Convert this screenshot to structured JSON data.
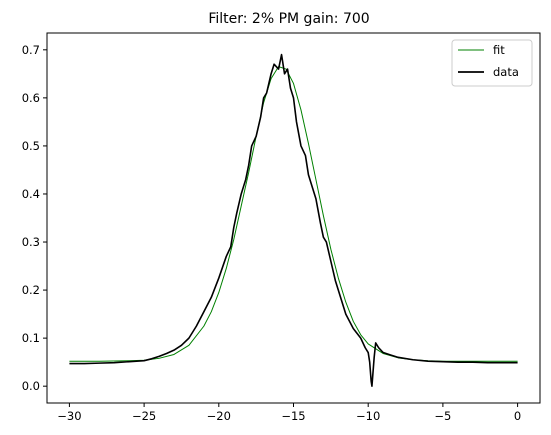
{
  "chart_data": {
    "type": "line",
    "title": "Filter: 2% PM gain: 700",
    "xlabel": "",
    "ylabel": "",
    "xlim": [
      -31.5,
      1.5
    ],
    "ylim": [
      -0.035,
      0.735
    ],
    "x_ticks": [
      -30,
      -25,
      -20,
      -15,
      -10,
      -5,
      0
    ],
    "x_tick_labels": [
      "−30",
      "−25",
      "−20",
      "−15",
      "−10",
      "−5",
      "0"
    ],
    "y_ticks": [
      0.0,
      0.1,
      0.2,
      0.3,
      0.4,
      0.5,
      0.6,
      0.7
    ],
    "y_tick_labels": [
      "0.0",
      "0.1",
      "0.2",
      "0.3",
      "0.4",
      "0.5",
      "0.6",
      "0.7"
    ],
    "grid": false,
    "legend_position": "top-right",
    "series": [
      {
        "name": "fit",
        "color": "#008000",
        "x": [
          -30,
          -28,
          -26,
          -25,
          -24,
          -23,
          -22,
          -21,
          -20.5,
          -20,
          -19.5,
          -19,
          -18.5,
          -18,
          -17.5,
          -17,
          -16.5,
          -16,
          -15.5,
          -15,
          -14.5,
          -14,
          -13.5,
          -13,
          -12.5,
          -12,
          -11.5,
          -11,
          -10.5,
          -10,
          -9,
          -8,
          -7,
          -6,
          -5,
          -4,
          -2,
          0
        ],
        "y": [
          0.052,
          0.052,
          0.053,
          0.054,
          0.058,
          0.066,
          0.085,
          0.125,
          0.155,
          0.195,
          0.245,
          0.305,
          0.375,
          0.445,
          0.52,
          0.59,
          0.64,
          0.665,
          0.66,
          0.63,
          0.575,
          0.505,
          0.43,
          0.355,
          0.285,
          0.225,
          0.175,
          0.135,
          0.107,
          0.088,
          0.068,
          0.059,
          0.055,
          0.053,
          0.052,
          0.052,
          0.052,
          0.052
        ]
      },
      {
        "name": "data",
        "color": "#000000",
        "x": [
          -30,
          -29,
          -28,
          -27,
          -26,
          -25,
          -24.5,
          -24,
          -23.5,
          -23,
          -22.5,
          -22,
          -21.5,
          -21,
          -20.5,
          -20,
          -19.5,
          -19.2,
          -19,
          -18.8,
          -18.5,
          -18.2,
          -18,
          -17.8,
          -17.5,
          -17.2,
          -17,
          -16.8,
          -16.5,
          -16.3,
          -16,
          -15.8,
          -15.6,
          -15.4,
          -15.2,
          -15,
          -14.8,
          -14.5,
          -14.2,
          -14,
          -13.8,
          -13.5,
          -13.2,
          -13,
          -12.8,
          -12.5,
          -12.2,
          -12,
          -11.5,
          -11,
          -10.5,
          -10.2,
          -10,
          -9.9,
          -9.8,
          -9.75,
          -9.7,
          -9.6,
          -9.5,
          -9.3,
          -9,
          -8.5,
          -8,
          -7,
          -6,
          -5,
          -4,
          -3,
          -2,
          -1,
          0
        ],
        "y": [
          0.047,
          0.047,
          0.048,
          0.049,
          0.051,
          0.053,
          0.057,
          0.062,
          0.068,
          0.075,
          0.085,
          0.1,
          0.125,
          0.155,
          0.185,
          0.225,
          0.27,
          0.29,
          0.33,
          0.36,
          0.4,
          0.43,
          0.46,
          0.5,
          0.52,
          0.56,
          0.6,
          0.61,
          0.65,
          0.67,
          0.66,
          0.69,
          0.65,
          0.66,
          0.62,
          0.6,
          0.55,
          0.5,
          0.48,
          0.44,
          0.42,
          0.39,
          0.34,
          0.31,
          0.3,
          0.26,
          0.22,
          0.2,
          0.15,
          0.12,
          0.1,
          0.08,
          0.07,
          0.05,
          0.01,
          0.0,
          0.02,
          0.06,
          0.09,
          0.08,
          0.07,
          0.065,
          0.06,
          0.055,
          0.052,
          0.051,
          0.05,
          0.05,
          0.049,
          0.049,
          0.049
        ]
      }
    ]
  }
}
